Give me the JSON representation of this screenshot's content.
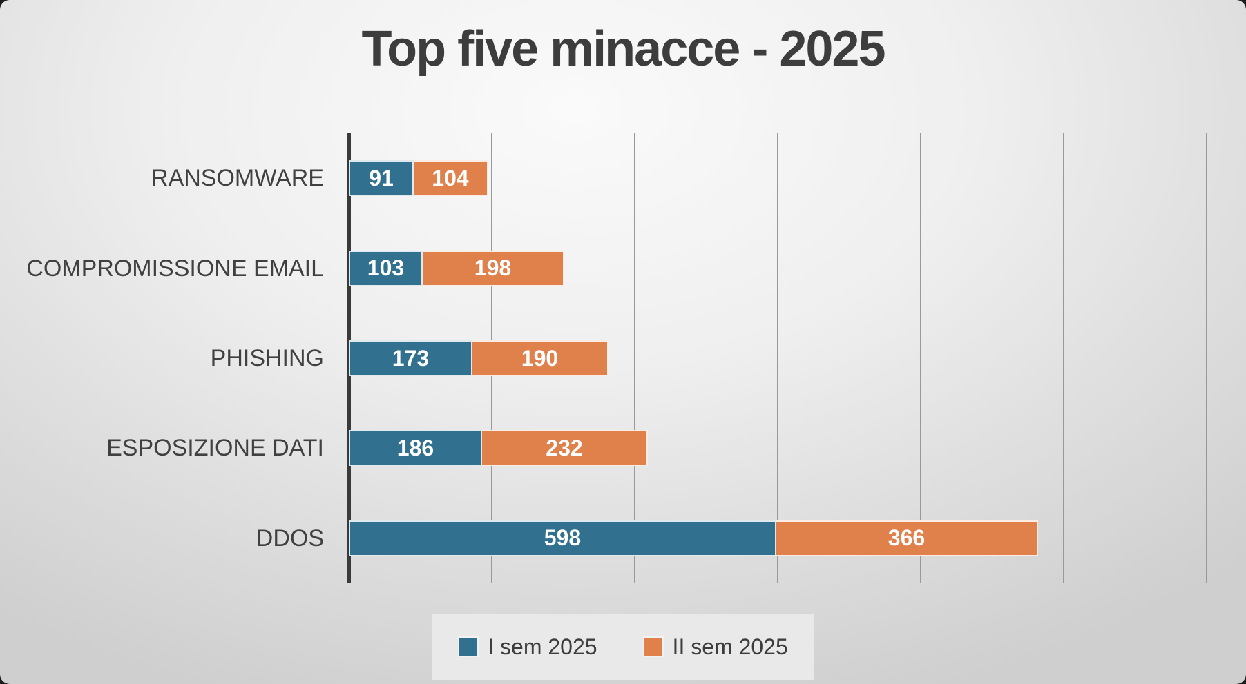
{
  "chart_data": {
    "type": "bar",
    "orientation": "horizontal",
    "stacked": true,
    "title": "Top five minacce - 2025",
    "categories": [
      "RANSOMWARE",
      "COMPROMISSIONE EMAIL",
      "PHISHING",
      "ESPOSIZIONE DATI",
      "DDOS"
    ],
    "series": [
      {
        "name": "I sem 2025",
        "color": "#31708F",
        "values": [
          91,
          103,
          173,
          186,
          598
        ]
      },
      {
        "name": "II sem 2025",
        "color": "#E0804A",
        "values": [
          104,
          198,
          190,
          232,
          366
        ]
      }
    ],
    "xlabel": "",
    "ylabel": "",
    "xlim": [
      0,
      1200
    ],
    "gridline_interval": 200,
    "grid": "vertical",
    "axis_tick_labels_shown": false,
    "data_labels": true,
    "legend_position": "bottom"
  },
  "style": {
    "gridline_color": "#999999",
    "axis_color": "#3a3a3a",
    "category_label_color": "#404040",
    "value_label_color": "#ffffff",
    "title_color": "#3d3d3d"
  }
}
